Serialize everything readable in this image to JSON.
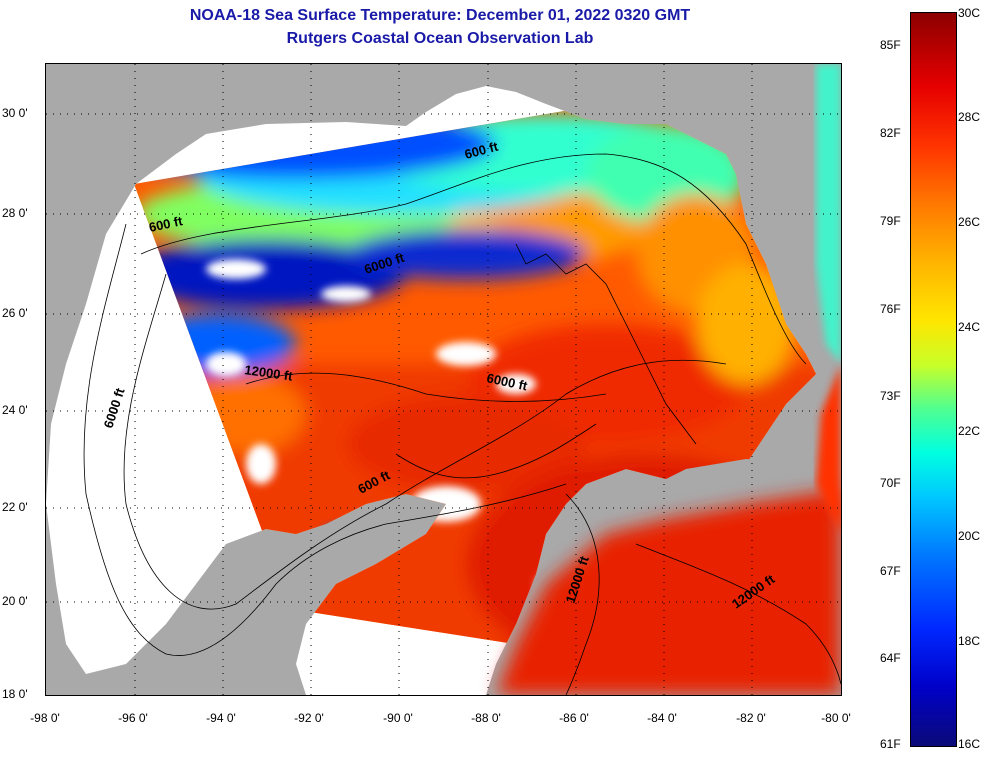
{
  "title": {
    "line1": "NOAA-18 Sea Surface Temperature:  December 01, 2022 0320 GMT",
    "line2": "Rutgers Coastal Ocean Observation Lab"
  },
  "x_ticks": [
    "-98 0'",
    "-96 0'",
    "-94 0'",
    "-92 0'",
    "-90 0'",
    "-88 0'",
    "-86 0'",
    "-84 0'",
    "-82 0'",
    "-80 0'"
  ],
  "y_ticks": [
    "30 0'",
    "28 0'",
    "26 0'",
    "24 0'",
    "22 0'",
    "20 0'",
    "18 0'"
  ],
  "colorbar": {
    "fahrenheit": [
      "85F",
      "82F",
      "79F",
      "76F",
      "73F",
      "70F",
      "67F",
      "64F",
      "61F"
    ],
    "celsius": [
      "30C",
      "28C",
      "26C",
      "24C",
      "22C",
      "20C",
      "18C",
      "16C"
    ]
  },
  "contour_labels": [
    "600 ft",
    "600 ft",
    "6000 ft",
    "12000 ft",
    "6000 ft",
    "600 ft",
    "6000 ft",
    "12000 ft",
    "12000 ft"
  ],
  "colors": {
    "land": "#a9a9a9",
    "no_data": "#ffffff",
    "title": "#1a1aa8"
  }
}
